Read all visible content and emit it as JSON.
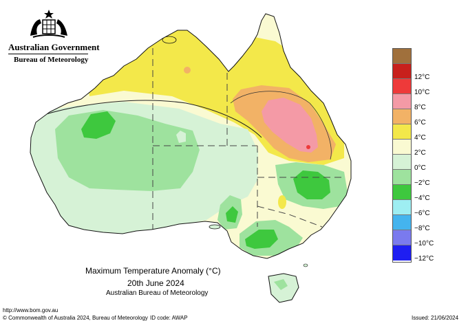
{
  "header": {
    "government": "Australian Government",
    "agency": "Bureau of Meteorology"
  },
  "map": {
    "title": "Maximum Temperature Anomaly (°C)",
    "date": "20th June 2024",
    "source": "Australian Bureau of Meteorology"
  },
  "legend": {
    "items": [
      {
        "label": "",
        "color": "#a0703c"
      },
      {
        "label": "12°C",
        "color": "#c8201c"
      },
      {
        "label": "10°C",
        "color": "#ee3a3a"
      },
      {
        "label": "8°C",
        "color": "#f49aa6"
      },
      {
        "label": "6°C",
        "color": "#f2b266"
      },
      {
        "label": "4°C",
        "color": "#f3e84a"
      },
      {
        "label": "2°C",
        "color": "#fafad2"
      },
      {
        "label": "0°C",
        "color": "#d6f2d6"
      },
      {
        "label": "−2°C",
        "color": "#9ee29e"
      },
      {
        "label": "−4°C",
        "color": "#3ec83e"
      },
      {
        "label": "−6°C",
        "color": "#9eeef2"
      },
      {
        "label": "−8°C",
        "color": "#44b4ee"
      },
      {
        "label": "−10°C",
        "color": "#7a7aee"
      },
      {
        "label": "−12°C",
        "color": "#1e1ef2"
      }
    ]
  },
  "footer": {
    "url": "http://www.bom.gov.au",
    "copyright": "© Commonwealth of Australia 2024, Bureau of Meteorology",
    "id_code": "ID code: AWAP",
    "issued": "Issued: 21/06/2024"
  }
}
